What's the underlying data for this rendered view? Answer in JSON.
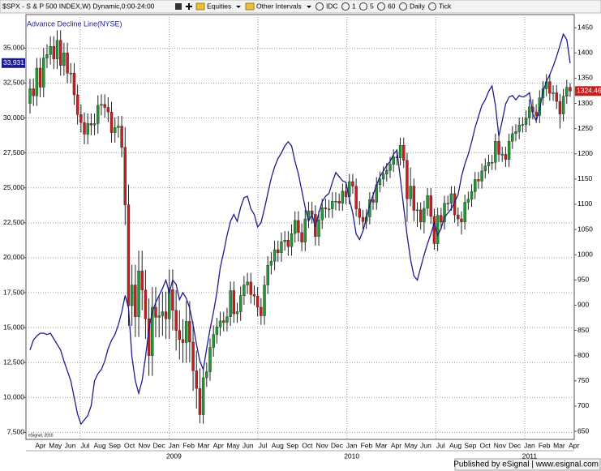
{
  "toolbar": {
    "items": [
      "Equities",
      "Other Intervals",
      "IDC",
      "1",
      "5",
      "60",
      "Daily",
      "Tick"
    ]
  },
  "footer": "Published by eSignal | www.esignal.com",
  "chart_data": {
    "type": "candlestick",
    "watermark": "eSignal, 2010",
    "months": [
      "Apr",
      "May",
      "Jun",
      "Jul",
      "Aug",
      "Sep",
      "Oct",
      "Nov",
      "Dec",
      "Jan",
      "Feb",
      "Mar",
      "Apr",
      "May",
      "Jun",
      "Jul",
      "Aug",
      "Sep",
      "Oct",
      "Nov",
      "Dec",
      "Jan",
      "Feb",
      "Mar",
      "Apr",
      "May",
      "Jun",
      "Jul",
      "Aug",
      "Sep",
      "Oct",
      "Nov",
      "Dec",
      "Jan",
      "Feb",
      "Mar",
      "Apr"
    ],
    "years": [
      "2009",
      "2010",
      "2011"
    ],
    "ylim": [
      7000,
      37400
    ],
    "yticks": [
      {
        "value": 7500,
        "label": "7,500"
      },
      {
        "value": 10000,
        "label": "10,000"
      },
      {
        "value": 12500,
        "label": "12,500"
      },
      {
        "value": 15000,
        "label": "15,000"
      },
      {
        "value": 17500,
        "label": "17,500"
      },
      {
        "value": 20000,
        "label": "20,000"
      },
      {
        "value": 22500,
        "label": "22,500"
      },
      {
        "value": 25000,
        "label": "25,000"
      },
      {
        "value": 27500,
        "label": "27,500"
      },
      {
        "value": 30000,
        "label": "30,000"
      },
      {
        "value": 32500,
        "label": "32,500"
      },
      {
        "value": 35000,
        "label": "35,000"
      }
    ],
    "y2lim": [
      634,
      1476
    ],
    "y2ticks": [
      650,
      700,
      750,
      800,
      850,
      900,
      950,
      1000,
      1050,
      1100,
      1150,
      1200,
      1250,
      1300,
      1350,
      1400,
      1450
    ],
    "grid": true,
    "series": [
      {
        "name": "$SPX - S & P 500 INDEX,W) Dynamic,0:00-24:00",
        "type": "candlestick",
        "axis": "y2",
        "up_color": "#1f9a2e",
        "down_color": "#c81e1e",
        "open": [
          1300,
          1329,
          1315,
          1370,
          1332,
          1390,
          1397,
          1413,
          1388,
          1425,
          1375,
          1400,
          1360,
          1360,
          1317,
          1278,
          1262,
          1239,
          1260,
          1257,
          1260,
          1296,
          1298,
          1292,
          1283,
          1242,
          1252,
          1255,
          1213,
          1099,
          899,
          940,
          877,
          968,
          930,
          873,
          800,
          896,
          876,
          879,
          887,
          873,
          931,
          890,
          850,
          832,
          826,
          868,
          827,
          770,
          735,
          683,
          756,
          768,
          816,
          842,
          857,
          869,
          866,
          877,
          929,
          883,
          887,
          919,
          940,
          946,
          921,
          918,
          896,
          879,
          940,
          979,
          987,
          1010,
          1004,
          1026,
          1029,
          1016,
          1042,
          1068,
          1044,
          1025,
          1071,
          1087,
          1080,
          1036,
          1069,
          1093,
          1091,
          1091,
          1106,
          1106,
          1102,
          1126,
          1115,
          1145,
          1136,
          1091,
          1074,
          1066,
          1075,
          1109,
          1104,
          1139,
          1150,
          1160,
          1167,
          1179,
          1194,
          1192,
          1217,
          1187,
          1111,
          1136,
          1088,
          1089,
          1065,
          1092,
          1117,
          1076,
          1022,
          1078,
          1065,
          1102,
          1102,
          1121,
          1079,
          1071,
          1065,
          1104,
          1110,
          1125,
          1149,
          1146,
          1166,
          1176,
          1183,
          1183,
          1225,
          1199,
          1199,
          1189,
          1225,
          1240,
          1244,
          1257,
          1258,
          1271,
          1293,
          1283,
          1276,
          1311,
          1329,
          1343,
          1320,
          1321,
          1304,
          1279,
          1314,
          1332
        ],
        "high": [
          1349,
          1349,
          1390,
          1390,
          1410,
          1417,
          1433,
          1433,
          1445,
          1445,
          1420,
          1420,
          1380,
          1380,
          1337,
          1298,
          1282,
          1280,
          1280,
          1280,
          1316,
          1318,
          1318,
          1312,
          1303,
          1272,
          1275,
          1275,
          1253,
          1139,
          980,
          980,
          1008,
          1008,
          970,
          913,
          936,
          936,
          919,
          927,
          927,
          971,
          971,
          930,
          890,
          872,
          908,
          908,
          867,
          810,
          775,
          774,
          786,
          834,
          860,
          875,
          887,
          887,
          895,
          947,
          947,
          905,
          937,
          958,
          964,
          964,
          939,
          936,
          914,
          958,
          997,
          1005,
          1028,
          1028,
          1044,
          1047,
          1047,
          1060,
          1086,
          1086,
          1062,
          1089,
          1105,
          1105,
          1098,
          1087,
          1111,
          1111,
          1109,
          1124,
          1124,
          1121,
          1141,
          1141,
          1160,
          1160,
          1151,
          1106,
          1089,
          1090,
          1124,
          1124,
          1154,
          1165,
          1175,
          1182,
          1194,
          1209,
          1209,
          1232,
          1232,
          1202,
          1173,
          1151,
          1104,
          1104,
          1107,
          1132,
          1132,
          1091,
          1093,
          1093,
          1117,
          1117,
          1136,
          1136,
          1094,
          1086,
          1119,
          1125,
          1140,
          1164,
          1164,
          1181,
          1191,
          1198,
          1198,
          1240,
          1240,
          1214,
          1214,
          1240,
          1255,
          1259,
          1272,
          1273,
          1286,
          1308,
          1308,
          1298,
          1326,
          1344,
          1358,
          1358,
          1336,
          1336,
          1319,
          1329,
          1347,
          1340
        ],
        "low": [
          1280,
          1295,
          1295,
          1312,
          1312,
          1370,
          1377,
          1368,
          1368,
          1355,
          1355,
          1340,
          1340,
          1297,
          1258,
          1242,
          1219,
          1219,
          1237,
          1237,
          1240,
          1276,
          1272,
          1263,
          1222,
          1222,
          1232,
          1193,
          1059,
          859,
          859,
          837,
          837,
          890,
          833,
          760,
          760,
          836,
          836,
          839,
          833,
          833,
          850,
          810,
          792,
          786,
          786,
          787,
          730,
          695,
          666,
          665,
          738,
          750,
          798,
          824,
          839,
          848,
          848,
          859,
          865,
          865,
          869,
          901,
          922,
          903,
          900,
          878,
          861,
          861,
          922,
          961,
          969,
          986,
          986,
          1008,
          998,
          998,
          1024,
          1026,
          1007,
          1007,
          1053,
          1062,
          1018,
          1018,
          1051,
          1073,
          1073,
          1073,
          1088,
          1087,
          1087,
          1100,
          1100,
          1121,
          1076,
          1059,
          1051,
          1051,
          1060,
          1089,
          1089,
          1124,
          1135,
          1145,
          1152,
          1164,
          1177,
          1177,
          1172,
          1065,
          1096,
          1066,
          1055,
          1050,
          1042,
          1077,
          1061,
          1010,
          1007,
          1050,
          1050,
          1087,
          1087,
          1064,
          1056,
          1040,
          1050,
          1089,
          1095,
          1110,
          1131,
          1131,
          1151,
          1161,
          1168,
          1168,
          1184,
          1184,
          1174,
          1174,
          1210,
          1225,
          1229,
          1242,
          1243,
          1256,
          1268,
          1261,
          1261,
          1296,
          1314,
          1305,
          1305,
          1289,
          1250,
          1264,
          1299,
          1313
        ],
        "close": [
          1329,
          1315,
          1370,
          1332,
          1390,
          1397,
          1413,
          1388,
          1425,
          1375,
          1400,
          1360,
          1360,
          1317,
          1278,
          1262,
          1239,
          1260,
          1257,
          1260,
          1296,
          1298,
          1292,
          1283,
          1242,
          1252,
          1255,
          1213,
          1099,
          899,
          940,
          877,
          968,
          930,
          873,
          800,
          896,
          876,
          879,
          887,
          873,
          931,
          890,
          850,
          832,
          826,
          868,
          827,
          770,
          735,
          683,
          756,
          768,
          816,
          842,
          857,
          869,
          866,
          877,
          929,
          883,
          887,
          919,
          940,
          946,
          921,
          918,
          896,
          879,
          940,
          979,
          987,
          1010,
          1004,
          1026,
          1029,
          1016,
          1042,
          1068,
          1044,
          1025,
          1071,
          1087,
          1080,
          1036,
          1069,
          1093,
          1091,
          1091,
          1106,
          1106,
          1102,
          1126,
          1115,
          1145,
          1136,
          1091,
          1074,
          1066,
          1075,
          1109,
          1104,
          1139,
          1150,
          1160,
          1167,
          1179,
          1194,
          1192,
          1217,
          1187,
          1111,
          1136,
          1088,
          1089,
          1065,
          1092,
          1117,
          1076,
          1022,
          1078,
          1065,
          1102,
          1102,
          1121,
          1079,
          1071,
          1065,
          1104,
          1110,
          1125,
          1149,
          1146,
          1166,
          1176,
          1183,
          1183,
          1225,
          1199,
          1199,
          1189,
          1225,
          1240,
          1244,
          1257,
          1258,
          1271,
          1293,
          1283,
          1276,
          1311,
          1329,
          1343,
          1320,
          1321,
          1304,
          1279,
          1314,
          1332,
          1324.46
        ]
      },
      {
        "name": "Advance Decline Line(NYSE)",
        "type": "line",
        "axis": "y",
        "color": "#1c1c8f",
        "last_value_label": "33,931",
        "values": [
          13400,
          14100,
          14400,
          14600,
          14600,
          14500,
          14600,
          14200,
          13800,
          13400,
          12600,
          11900,
          11200,
          10000,
          8800,
          8100,
          8400,
          8700,
          9400,
          11200,
          11700,
          12000,
          12600,
          13500,
          14100,
          14500,
          15200,
          16100,
          17300,
          16400,
          12900,
          11200,
          10300,
          11200,
          12900,
          14900,
          16100,
          16800,
          17300,
          17800,
          18400,
          17500,
          18400,
          18100,
          17000,
          17500,
          17100,
          16400,
          15200,
          13800,
          12600,
          12000,
          13500,
          14900,
          16100,
          17500,
          19300,
          20400,
          21600,
          22600,
          23100,
          22600,
          23600,
          24300,
          24400,
          23500,
          23100,
          22200,
          22500,
          23500,
          24600,
          25700,
          26500,
          27100,
          27500,
          28000,
          28300,
          28000,
          26900,
          26000,
          24800,
          23600,
          22600,
          23100,
          22200,
          23200,
          24000,
          24400,
          24600,
          25400,
          26100,
          25800,
          25500,
          25400,
          24200,
          23200,
          21700,
          21300,
          21900,
          22800,
          23800,
          24500,
          25200,
          25800,
          26200,
          26600,
          26900,
          27400,
          27700,
          25700,
          23600,
          21600,
          19900,
          18700,
          18400,
          19300,
          20200,
          21000,
          21700,
          22500,
          21600,
          22100,
          22900,
          23200,
          23500,
          24000,
          24500,
          25800,
          26700,
          27400,
          28300,
          29300,
          30100,
          30900,
          31300,
          31900,
          32300,
          30900,
          28700,
          29800,
          31000,
          31500,
          31600,
          31300,
          31600,
          31500,
          31600,
          31800,
          30300,
          29800,
          30600,
          31900,
          32600,
          33100,
          33700,
          34400,
          35200,
          36000,
          35600,
          33931
        ]
      }
    ]
  }
}
